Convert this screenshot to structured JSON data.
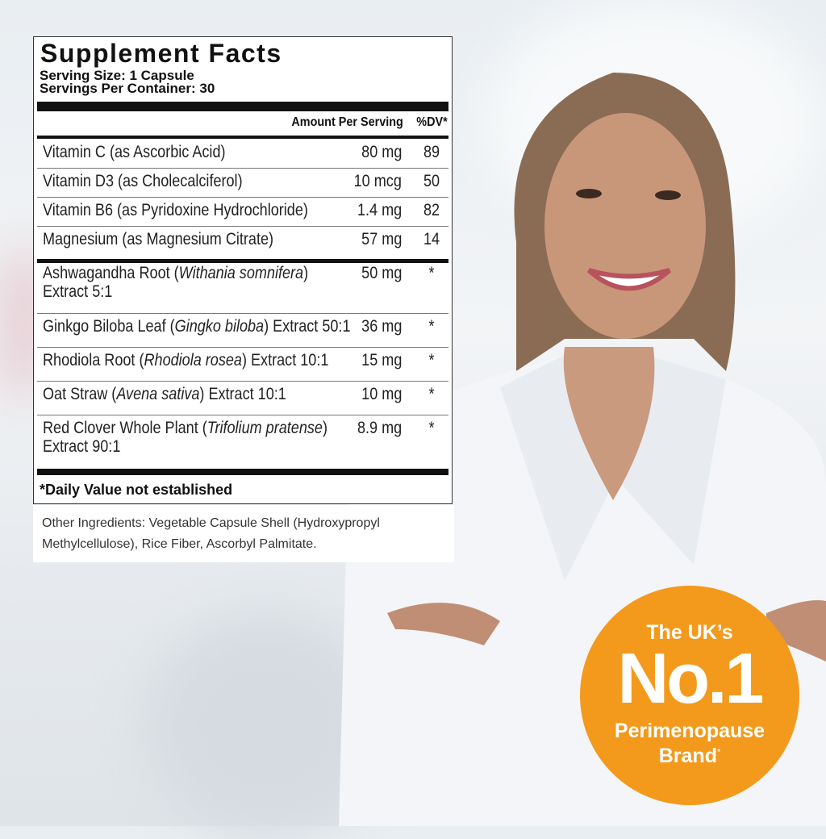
{
  "label": {
    "title": "Supplement Facts",
    "serving_size": "Serving Size: 1 Capsule",
    "servings_per_container": "Servings Per Container: 30",
    "col_amount": "Amount Per Serving",
    "col_dv": "%DV*",
    "rows": [
      {
        "pre": "Vitamin C (as Ascorbic Acid)",
        "it": "",
        "post": "",
        "line2": "",
        "amount": "80 mg",
        "dv": "89"
      },
      {
        "pre": "Vitamin D3 (as Cholecalciferol)",
        "it": "",
        "post": "",
        "line2": "",
        "amount": "10 mcg",
        "dv": "50"
      },
      {
        "pre": "Vitamin B6 (as Pyridoxine Hydrochloride)",
        "it": "",
        "post": "",
        "line2": "",
        "amount": "1.4 mg",
        "dv": "82"
      },
      {
        "pre": "Magnesium (as Magnesium Citrate)",
        "it": "",
        "post": "",
        "line2": "",
        "amount": "57 mg",
        "dv": "14"
      },
      {
        "pre": "Ashwagandha Root (",
        "it": "Withania somnifera",
        "post": ")",
        "line2": "Extract 5:1",
        "amount": "50 mg",
        "dv": "*"
      },
      {
        "pre": "Ginkgo Biloba Leaf (",
        "it": "Gingko biloba",
        "post": ") Extract 50:1",
        "line2": "",
        "amount": "36 mg",
        "dv": "*"
      },
      {
        "pre": "Rhodiola Root (",
        "it": "Rhodiola rosea",
        "post": ") Extract 10:1",
        "line2": "",
        "amount": "15 mg",
        "dv": "*"
      },
      {
        "pre": "Oat Straw (",
        "it": "Avena sativa",
        "post": ") Extract 10:1",
        "line2": "",
        "amount": "10 mg",
        "dv": "*"
      },
      {
        "pre": "Red Clover Whole Plant (",
        "it": "Trifolium pratense",
        "post": ")",
        "line2": "Extract 90:1",
        "amount": "8.9 mg",
        "dv": "*"
      }
    ],
    "footnote": "*Daily Value not established"
  },
  "other_ingredients": "Other Ingredients: Vegetable Capsule Shell (Hydroxypropyl Methylcellulose), Rice Fiber, Ascorbyl Palmitate.",
  "badge": {
    "line1": "The UK’s",
    "line2": "No.1",
    "line3": "Perimenopause",
    "line4": "Brand",
    "mark": "*",
    "color": "#F39A1C"
  }
}
